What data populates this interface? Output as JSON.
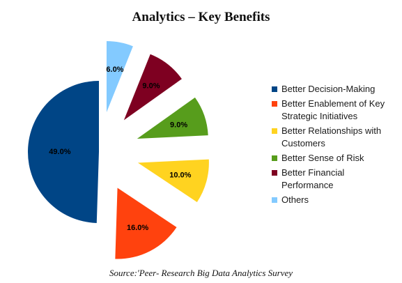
{
  "chart_data": {
    "type": "pie",
    "title": "Analytics – Key Benefits",
    "slices": [
      {
        "label": "Better Decision-Making",
        "value": 49.0,
        "display": "49.0%",
        "color": "#004586"
      },
      {
        "label": "Better Enablement of Key Strategic Initiatives",
        "value": 16.0,
        "display": "16.0%",
        "color": "#ff420e"
      },
      {
        "label": "Better Relationships with Customers",
        "value": 10.0,
        "display": "10.0%",
        "color": "#ffd320"
      },
      {
        "label": "Better Sense of Risk",
        "value": 9.0,
        "display": "9.0%",
        "color": "#579d1c"
      },
      {
        "label": "Better Financial Performance",
        "value": 9.0,
        "display": "9.0%",
        "color": "#7e0021"
      },
      {
        "label": "Others",
        "value": 6.0,
        "display": "6.0%",
        "color": "#83caff"
      }
    ],
    "legend_position": "right",
    "exploded": true
  },
  "legend": {
    "items": [
      {
        "lines": [
          "Better Decision-Making"
        ]
      },
      {
        "lines": [
          "Better Enablement of Key",
          "Strategic Initiatives"
        ]
      },
      {
        "lines": [
          "Better Relationships with",
          "Customers"
        ]
      },
      {
        "lines": [
          "Better Sense of Risk"
        ]
      },
      {
        "lines": [
          "Better Financial",
          "Performance"
        ]
      },
      {
        "lines": [
          "Others"
        ]
      }
    ]
  },
  "source": "Source:'Peer- Research Big Data Analytics Survey"
}
